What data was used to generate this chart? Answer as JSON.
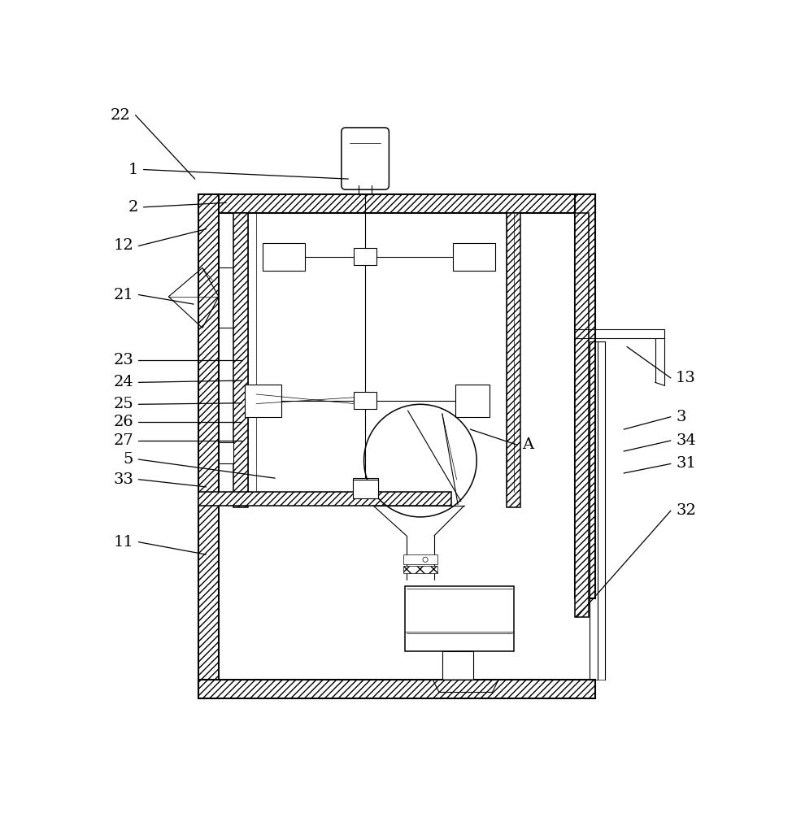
{
  "fig_width": 9.74,
  "fig_height": 10.0,
  "dpi": 100,
  "bg": "#ffffff",
  "lc": "#000000",
  "lw_wall": 1.5,
  "lw_med": 1.1,
  "lw_thin": 0.8,
  "lw_hair": 0.5,
  "fs": 14,
  "left_labels": [
    [
      "22",
      55,
      28,
      150,
      130
    ],
    [
      "1",
      68,
      115,
      395,
      130
    ],
    [
      "2",
      68,
      175,
      200,
      168
    ],
    [
      "12",
      60,
      237,
      168,
      210
    ],
    [
      "21",
      60,
      315,
      148,
      330
    ],
    [
      "23",
      60,
      420,
      225,
      420
    ],
    [
      "24",
      60,
      455,
      225,
      452
    ],
    [
      "25",
      60,
      490,
      225,
      488
    ],
    [
      "26",
      60,
      518,
      225,
      518
    ],
    [
      "27",
      60,
      548,
      225,
      548
    ],
    [
      "5",
      60,
      578,
      278,
      608
    ],
    [
      "33",
      60,
      610,
      168,
      622
    ],
    [
      "11",
      60,
      710,
      168,
      730
    ]
  ],
  "right_labels": [
    [
      "13",
      910,
      448,
      840,
      398
    ],
    [
      "3",
      910,
      510,
      835,
      530
    ],
    [
      "34",
      910,
      548,
      835,
      565
    ],
    [
      "31",
      910,
      585,
      835,
      600
    ],
    [
      "32",
      910,
      660,
      760,
      830
    ]
  ],
  "label_A": [
    665,
    555,
    590,
    530
  ]
}
